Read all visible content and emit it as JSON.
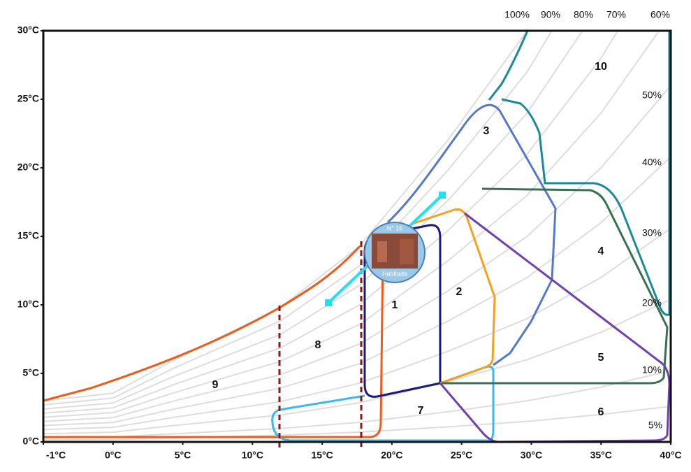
{
  "chart_data": {
    "type": "psychrometric",
    "xticks": [
      {
        "value": -1,
        "label": "-1°C"
      },
      {
        "value": 0,
        "label": "0°C"
      },
      {
        "value": 5,
        "label": "5°C"
      },
      {
        "value": 10,
        "label": "10°C"
      },
      {
        "value": 15,
        "label": "15°C"
      },
      {
        "value": 20,
        "label": "20°C"
      },
      {
        "value": 25,
        "label": "25°C"
      },
      {
        "value": 30,
        "label": "30°C"
      },
      {
        "value": 35,
        "label": "35°C"
      },
      {
        "value": 40,
        "label": "40°C"
      }
    ],
    "yticks": [
      {
        "value": 0,
        "label": "0°C"
      },
      {
        "value": 5,
        "label": "5°C"
      },
      {
        "value": 10,
        "label": "10°C"
      },
      {
        "value": 15,
        "label": "15°C"
      },
      {
        "value": 20,
        "label": "20°C"
      },
      {
        "value": 25,
        "label": "25°C"
      },
      {
        "value": 30,
        "label": "30°C"
      }
    ],
    "rh_curves": [
      {
        "value": 100,
        "label": "100%"
      },
      {
        "value": 90,
        "label": "90%"
      },
      {
        "value": 80,
        "label": "80%"
      },
      {
        "value": 70,
        "label": "70%"
      },
      {
        "value": 60,
        "label": "60%"
      },
      {
        "value": 50,
        "label": "50%"
      },
      {
        "value": 40,
        "label": "40%"
      },
      {
        "value": 30,
        "label": "30%"
      },
      {
        "value": 20,
        "label": "20%"
      },
      {
        "value": 10,
        "label": "10%"
      },
      {
        "value": 5,
        "label": "5%"
      }
    ],
    "zones": [
      "1",
      "2",
      "3",
      "4",
      "5",
      "6",
      "7",
      "8",
      "9",
      "10"
    ],
    "badge": {
      "title": "N° 15",
      "subtitle": "Habitada"
    }
  }
}
